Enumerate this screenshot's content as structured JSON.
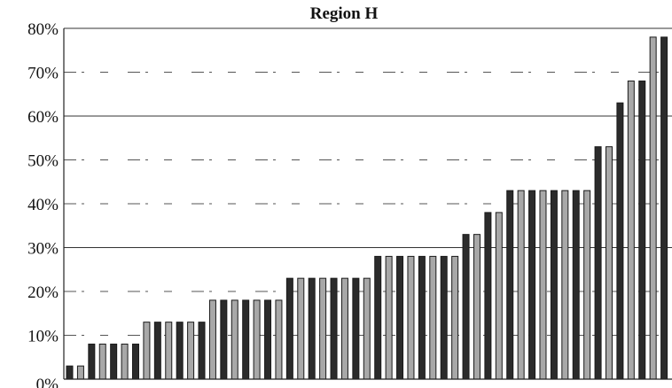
{
  "chart_data": {
    "type": "bar",
    "title": "Region H",
    "xlabel": "",
    "ylabel": "",
    "ylim": [
      0,
      80
    ],
    "y_ticks": [
      "0%",
      "10%",
      "20%",
      "30%",
      "40%",
      "50%",
      "60%",
      "70%",
      "80%"
    ],
    "grid": true,
    "legend": "none",
    "values": [
      3,
      3,
      8,
      8,
      8,
      8,
      8,
      13,
      13,
      13,
      13,
      13,
      13,
      18,
      18,
      18,
      18,
      18,
      18,
      18,
      23,
      23,
      23,
      23,
      23,
      23,
      23,
      23,
      28,
      28,
      28,
      28,
      28,
      28,
      28,
      28,
      33,
      33,
      38,
      38,
      43,
      43,
      43,
      43,
      43,
      43,
      43,
      43,
      53,
      53,
      63,
      68,
      68,
      78,
      78
    ],
    "colors": {
      "bar_dark": "#2b2b2b",
      "bar_light": "#a8a8a8",
      "stroke": "#1a1a1a"
    }
  }
}
